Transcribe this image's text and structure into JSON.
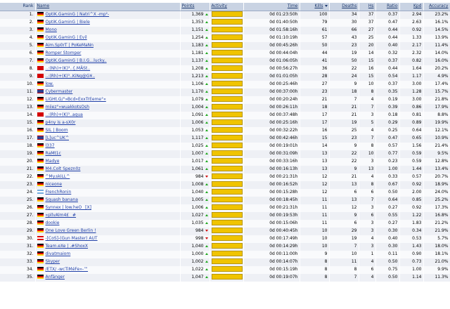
{
  "columns": {
    "rank": "Rank",
    "name": "Name",
    "points": "Points",
    "activity": "Activity",
    "time": "Time",
    "kills": "Kills",
    "deaths": "Deaths",
    "hs": "Hs",
    "ratio": "Ratio",
    "kpd": "Kpd",
    "accuracy": "Accuracy"
  },
  "players": [
    {
      "rank": "1.",
      "flag": "de",
      "name": "OptiK.GaminG | Natri^X -mp²-",
      "points": "1,369",
      "trend": "up",
      "time": "0d 01:23:50h",
      "kills": "100",
      "deaths": "34",
      "hs": "37",
      "ratio": "0.37",
      "kpd": "2.94",
      "accuracy": "23.2%"
    },
    {
      "rank": "2.",
      "flag": "de",
      "name": "OptiK.GaminG | Biele",
      "points": "1,353",
      "trend": "up",
      "time": "0d 01:40:50h",
      "kills": "79",
      "deaths": "30",
      "hs": "37",
      "ratio": "0.47",
      "kpd": "2.63",
      "accuracy": "16.1%"
    },
    {
      "rank": "3.",
      "flag": "de",
      "name": "Mono",
      "points": "1,151",
      "trend": "up",
      "time": "0d 01:58:16h",
      "kills": "61",
      "deaths": "66",
      "hs": "27",
      "ratio": "0.44",
      "kpd": "0.92",
      "accuracy": "14.5%"
    },
    {
      "rank": "4.",
      "flag": "de",
      "name": "OptiK.GaminG | Evil",
      "points": "1,254",
      "trend": "up",
      "time": "0d 01:10:19h",
      "kills": "57",
      "deaths": "43",
      "hs": "25",
      "ratio": "0.44",
      "kpd": "1.33",
      "accuracy": "13.9%"
    },
    {
      "rank": "5.",
      "flag": "de",
      "name": "Aim.Sp0rT | PoKeMaNn",
      "points": "1,183",
      "trend": "up",
      "time": "0d 00:45:26h",
      "kills": "50",
      "deaths": "23",
      "hs": "20",
      "ratio": "0.40",
      "kpd": "2.17",
      "accuracy": "11.4%"
    },
    {
      "rank": "6.",
      "flag": "de",
      "name": "Romper Stomper",
      "points": "1,181",
      "trend": "up",
      "time": "0d 00:44:04h",
      "kills": "44",
      "deaths": "19",
      "hs": "14",
      "ratio": "0.32",
      "kpd": "2.32",
      "accuracy": "14.0%"
    },
    {
      "rank": "7.",
      "flag": "de",
      "name": "OptiK.GaminG | B.I.G...lucky..",
      "points": "1,137",
      "trend": "up",
      "time": "0d 01:06:05h",
      "kills": "41",
      "deaths": "50",
      "hs": "15",
      "ratio": "0.37",
      "kpd": "0.82",
      "accuracy": "16.0%"
    },
    {
      "rank": "8.",
      "flag": "sw",
      "name": "..:(Nh)+(K)³..{.MÄSt..",
      "points": "1,208",
      "trend": "up",
      "time": "0d 00:56:27h",
      "kills": "36",
      "deaths": "22",
      "hs": "16",
      "ratio": "0.44",
      "kpd": "1.64",
      "accuracy": "20.2%"
    },
    {
      "rank": "9.",
      "flag": "sw",
      "name": "..:(Rh)+(K)³..KiNg@G¥..",
      "points": "1,213",
      "trend": "up",
      "time": "0d 01:01:05h",
      "kills": "28",
      "deaths": "24",
      "hs": "15",
      "ratio": "0.54",
      "kpd": "1.17",
      "accuracy": "4.9%"
    },
    {
      "rank": "10.",
      "flag": "de",
      "name": "low.",
      "points": "1,106",
      "trend": "up",
      "time": "0d 00:25:46h",
      "kills": "27",
      "deaths": "9",
      "hs": "10",
      "ratio": "0.37",
      "kpd": "3.00",
      "accuracy": "17.4%"
    },
    {
      "rank": "11.",
      "flag": "uk",
      "name": "Cybermaster",
      "points": "1,170",
      "trend": "up",
      "time": "0d 00:37:00h",
      "kills": "23",
      "deaths": "18",
      "hs": "8",
      "ratio": "0.35",
      "kpd": "1.28",
      "accuracy": "15.7%"
    },
    {
      "rank": "12.",
      "flag": "de",
      "name": "LiGHt.G/°»Bcd»ExxTrEeme°«",
      "points": "1,079",
      "trend": "up",
      "time": "0d 00:20:24h",
      "kills": "21",
      "deaths": "7",
      "hs": "4",
      "ratio": "0.19",
      "kpd": "3.00",
      "accuracy": "21.8%"
    },
    {
      "rank": "13.",
      "flag": "de",
      "name": "miiez°»wuakkotsOsh",
      "points": "1,004",
      "trend": "up",
      "time": "0d 00:26:11h",
      "kills": "18",
      "deaths": "21",
      "hs": "7",
      "ratio": "0.39",
      "kpd": "0.86",
      "accuracy": "17.9%"
    },
    {
      "rank": "14.",
      "flag": "sw",
      "name": "..:(Rh)+(K)³..aqua",
      "points": "1,091",
      "trend": "up",
      "time": "0d 00:37:48h",
      "kills": "17",
      "deaths": "21",
      "hs": "3",
      "ratio": "0.18",
      "kpd": "0.81",
      "accuracy": "8.8%"
    },
    {
      "rank": "15.",
      "flag": "de",
      "name": "p4ny is a-sX0r",
      "points": "1,006",
      "trend": "up",
      "time": "0d 00:25:16h",
      "kills": "17",
      "deaths": "19",
      "hs": "5",
      "ratio": "0.29",
      "kpd": "0.89",
      "accuracy": "19.9%"
    },
    {
      "rank": "16.",
      "flag": "de",
      "name": "SIL | Boom",
      "points": "1,053",
      "trend": "up",
      "time": "0d 00:32:22h",
      "kills": "16",
      "deaths": "25",
      "hs": "4",
      "ratio": "0.25",
      "kpd": "0.64",
      "accuracy": "12.1%"
    },
    {
      "rank": "17.",
      "flag": "uk",
      "name": "[L]uc^UK^",
      "points": "1,117",
      "trend": "up",
      "time": "0d 00:42:46h",
      "kills": "15",
      "deaths": "23",
      "hs": "7",
      "ratio": "0.47",
      "kpd": "0.65",
      "accuracy": "10.9%"
    },
    {
      "rank": "18.",
      "flag": "de",
      "name": "l337",
      "points": "1,025",
      "trend": "up",
      "time": "0d 00:19:01h",
      "kills": "14",
      "deaths": "9",
      "hs": "8",
      "ratio": "0.57",
      "kpd": "1.56",
      "accuracy": "21.4%"
    },
    {
      "rank": "19.",
      "flag": "de",
      "name": "RaMt1c",
      "points": "1,007",
      "trend": "up",
      "time": "0d 00:31:09h",
      "kills": "13",
      "deaths": "22",
      "hs": "10",
      "ratio": "0.77",
      "kpd": "0.59",
      "accuracy": "9.5%"
    },
    {
      "rank": "20.",
      "flag": "de",
      "name": "Madye",
      "points": "1,017",
      "trend": "up",
      "time": "0d 00:33:16h",
      "kills": "13",
      "deaths": "22",
      "hs": "3",
      "ratio": "0.23",
      "kpd": "0.59",
      "accuracy": "12.8%"
    },
    {
      "rank": "21.",
      "flag": "de",
      "name": "M4.Colt Spezn0z",
      "points": "1,061",
      "trend": "up",
      "time": "0d 00:16:13h",
      "kills": "13",
      "deaths": "9",
      "hs": "13",
      "ratio": "1.00",
      "kpd": "1.44",
      "accuracy": "13.4%"
    },
    {
      "rank": "22.",
      "flag": "de",
      "name": "^My.skiLL^",
      "points": "984",
      "trend": "down",
      "time": "0d 00:21:31h",
      "kills": "12",
      "deaths": "21",
      "hs": "4",
      "ratio": "0.33",
      "kpd": "0.57",
      "accuracy": "20.7%"
    },
    {
      "rank": "23.",
      "flag": "de",
      "name": "niceone",
      "points": "1,008",
      "trend": "up",
      "time": "0d 00:16:52h",
      "kills": "12",
      "deaths": "13",
      "hs": "8",
      "ratio": "0.67",
      "kpd": "0.92",
      "accuracy": "18.9%"
    },
    {
      "rank": "24.",
      "flag": "ar",
      "name": "FrenchRonin",
      "points": "1,040",
      "trend": "up",
      "time": "0d 00:15:28h",
      "kills": "12",
      "deaths": "6",
      "hs": "6",
      "ratio": "0.50",
      "kpd": "2.00",
      "accuracy": "24.0%"
    },
    {
      "rank": "25.",
      "flag": "de",
      "name": "Squash banana",
      "points": "1,005",
      "trend": "up",
      "time": "0d 00:18:45h",
      "kills": "11",
      "deaths": "13",
      "hs": "7",
      "ratio": "0.64",
      "kpd": "0.85",
      "accuracy": "25.2%"
    },
    {
      "rank": "26.",
      "flag": "de",
      "name": "Synnex | low.heO _[X]",
      "points": "1,006",
      "trend": "up",
      "time": "0d 00:21:31h",
      "kills": "11",
      "deaths": "12",
      "hs": "3",
      "ratio": "0.27",
      "kpd": "0.92",
      "accuracy": "17.3%"
    },
    {
      "rank": "27.",
      "flag": "de",
      "name": "»pllvAlm4£ _#",
      "points": "1,027",
      "trend": "up",
      "time": "0d 00:19:53h",
      "kills": "11",
      "deaths": "9",
      "hs": "6",
      "ratio": "0.55",
      "kpd": "1.22",
      "accuracy": "16.8%"
    },
    {
      "rank": "28.",
      "flag": "de",
      "name": "dookie",
      "points": "1,035",
      "trend": "up",
      "time": "0d 00:15:06h",
      "kills": "11",
      "deaths": "6",
      "hs": "3",
      "ratio": "0.27",
      "kpd": "1.83",
      "accuracy": "21.2%"
    },
    {
      "rank": "29.",
      "flag": "de",
      "name": "One Love Green Berlin !",
      "points": "984",
      "trend": "down",
      "time": "0d 00:40:45h",
      "kills": "10",
      "deaths": "29",
      "hs": "3",
      "ratio": "0.30",
      "kpd": "0.34",
      "accuracy": "21.9%"
    },
    {
      "rank": "30.",
      "flag": "at",
      "name": "-[CoS]-(Gun Master) AUT",
      "points": "998",
      "trend": "down",
      "time": "0d 00:17:49h",
      "kills": "10",
      "deaths": "19",
      "hs": "4",
      "ratio": "0.40",
      "kpd": "0.53",
      "accuracy": "5.7%"
    },
    {
      "rank": "31.",
      "flag": "de",
      "name": "Team.eXe | .#ShoxX",
      "points": "1,040",
      "trend": "up",
      "time": "0d 00:14:29h",
      "kills": "10",
      "deaths": "7",
      "hs": "3",
      "ratio": "0.30",
      "kpd": "1.43",
      "accuracy": "18.0%"
    },
    {
      "rank": "32.",
      "flag": "de",
      "name": "divatmaiom",
      "points": "1,000",
      "trend": "up",
      "time": "0d 00:11:00h",
      "kills": "9",
      "deaths": "10",
      "hs": "1",
      "ratio": "0.11",
      "kpd": "0.90",
      "accuracy": "18.1%"
    },
    {
      "rank": "33.",
      "flag": "de",
      "name": "Skyper",
      "points": "1,002",
      "trend": "up",
      "time": "0d 00:14:07h",
      "kills": "8",
      "deaths": "11",
      "hs": "4",
      "ratio": "0.50",
      "kpd": "0.73",
      "accuracy": "21.0%"
    },
    {
      "rank": "34.",
      "flag": "de",
      "name": "/ETX/ -wcTiMéFe»-™",
      "points": "1,022",
      "trend": "up",
      "time": "0d 00:15:19h",
      "kills": "8",
      "deaths": "8",
      "hs": "6",
      "ratio": "0.75",
      "kpd": "1.00",
      "accuracy": "9.9%"
    },
    {
      "rank": "35.",
      "flag": "de",
      "name": "Anfänger",
      "points": "1,047",
      "trend": "up",
      "time": "0d 00:19:07h",
      "kills": "8",
      "deaths": "7",
      "hs": "4",
      "ratio": "0.50",
      "kpd": "1.14",
      "accuracy": "11.3%"
    }
  ]
}
